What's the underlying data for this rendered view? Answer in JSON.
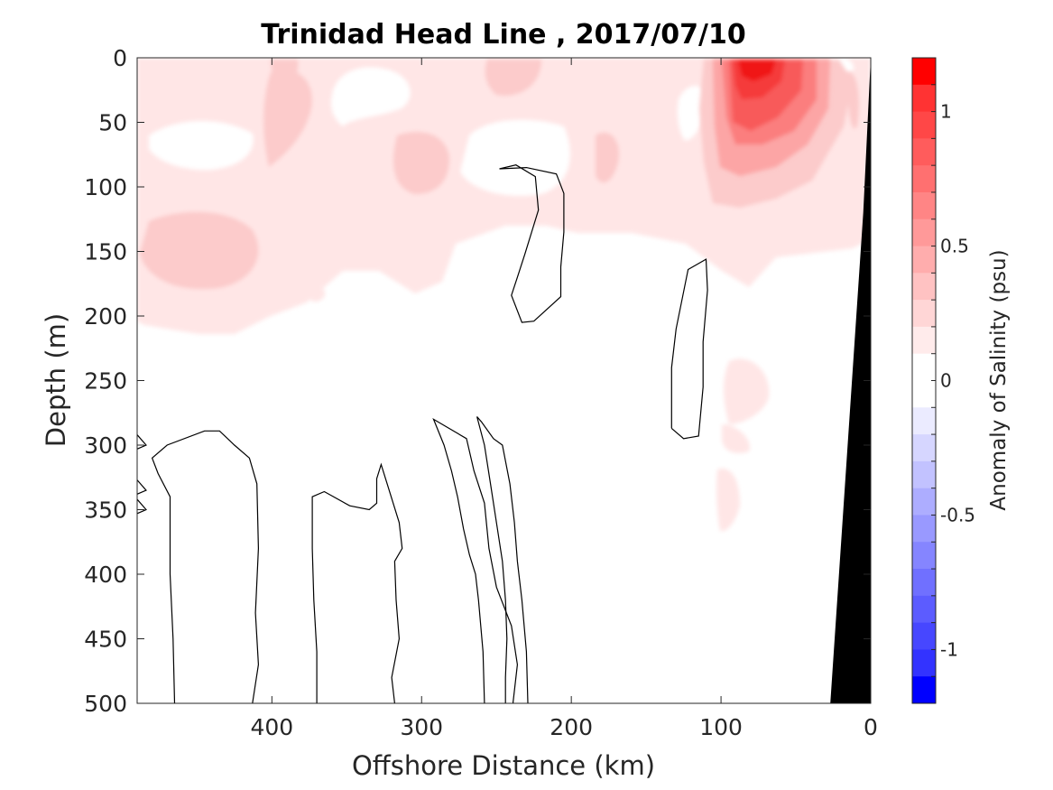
{
  "chart_data": {
    "type": "heatmap",
    "title": "Trinidad Head Line , 2017/07/10",
    "xlabel": "Offshore Distance (km)",
    "ylabel": "Depth (m)",
    "xlim": [
      490,
      0
    ],
    "ylim": [
      0,
      500
    ],
    "x_reversed": true,
    "y_reversed": true,
    "xticks": [
      400,
      300,
      200,
      100,
      0
    ],
    "yticks": [
      0,
      50,
      100,
      150,
      200,
      250,
      300,
      350,
      400,
      450,
      500
    ],
    "colorbar": {
      "label": "Anomaly of Salinity (psu)",
      "range": [
        -1.2,
        1.2
      ],
      "step": 0.1,
      "ticks": [
        1,
        0.5,
        0,
        -0.5,
        -1
      ],
      "tick_labels": [
        "1",
        "0.5",
        "0",
        "-0.5",
        "-1"
      ]
    },
    "zero_contours_km_m": [
      [
        [
          248,
          86
        ],
        [
          237,
          83
        ],
        [
          224,
          92
        ],
        [
          222,
          118
        ],
        [
          231,
          152
        ],
        [
          236,
          170
        ],
        [
          240,
          184
        ],
        [
          233,
          205
        ],
        [
          225,
          204
        ],
        [
          207,
          185
        ],
        [
          207,
          162
        ],
        [
          205,
          135
        ],
        [
          205,
          105
        ],
        [
          210,
          90
        ],
        [
          230,
          85
        ],
        [
          248,
          86
        ]
      ],
      [
        [
          133,
          287
        ],
        [
          133,
          240
        ],
        [
          130,
          210
        ],
        [
          122,
          164
        ],
        [
          110,
          156
        ],
        [
          109,
          180
        ],
        [
          112,
          220
        ],
        [
          112,
          255
        ],
        [
          115,
          293
        ],
        [
          125,
          295
        ],
        [
          133,
          287
        ]
      ],
      [
        [
          465,
          500
        ],
        [
          466,
          450
        ],
        [
          468,
          400
        ],
        [
          468,
          340
        ],
        [
          476,
          322
        ],
        [
          480,
          310
        ],
        [
          470,
          300
        ],
        [
          445,
          289
        ],
        [
          435,
          289
        ],
        [
          425,
          300
        ],
        [
          415,
          310
        ],
        [
          410,
          330
        ],
        [
          409,
          380
        ],
        [
          411,
          430
        ],
        [
          409,
          470
        ],
        [
          413,
          500
        ]
      ],
      [
        [
          370,
          500
        ],
        [
          370,
          460
        ],
        [
          372,
          420
        ],
        [
          373,
          380
        ],
        [
          373,
          340
        ],
        [
          365,
          336
        ],
        [
          348,
          347
        ],
        [
          335,
          350
        ],
        [
          330,
          345
        ],
        [
          330,
          326
        ],
        [
          327,
          315
        ],
        [
          323,
          330
        ],
        [
          315,
          360
        ],
        [
          313,
          380
        ],
        [
          318,
          390
        ],
        [
          317,
          420
        ],
        [
          315,
          450
        ],
        [
          320,
          480
        ],
        [
          318,
          500
        ]
      ],
      [
        [
          258,
          500
        ],
        [
          259,
          460
        ],
        [
          262,
          420
        ],
        [
          264,
          400
        ],
        [
          268,
          385
        ],
        [
          272,
          365
        ],
        [
          276,
          340
        ],
        [
          280,
          320
        ],
        [
          285,
          300
        ],
        [
          292,
          280
        ],
        [
          270,
          295
        ],
        [
          265,
          320
        ],
        [
          258,
          345
        ],
        [
          255,
          380
        ],
        [
          250,
          410
        ],
        [
          240,
          440
        ],
        [
          236,
          470
        ],
        [
          239,
          500
        ]
      ],
      [
        [
          229,
          500
        ],
        [
          230,
          460
        ],
        [
          233,
          420
        ],
        [
          236,
          390
        ],
        [
          238,
          360
        ],
        [
          241,
          330
        ],
        [
          246,
          300
        ],
        [
          252,
          295
        ],
        [
          260,
          282
        ],
        [
          263,
          278
        ],
        [
          258,
          300
        ],
        [
          254,
          330
        ],
        [
          250,
          360
        ],
        [
          246,
          390
        ],
        [
          244,
          420
        ],
        [
          243,
          450
        ],
        [
          244,
          480
        ],
        [
          244,
          500
        ]
      ]
    ],
    "anomalies": [
      {
        "x_km": 75,
        "depth_m": 5,
        "value": 1.2
      },
      {
        "x_km": 80,
        "depth_m": 55,
        "value": 0.8
      },
      {
        "x_km": 95,
        "depth_m": 100,
        "value": 0.4
      },
      {
        "x_km": 30,
        "depth_m": 60,
        "value": 0.3
      },
      {
        "x_km": 160,
        "depth_m": 120,
        "value": 0.25
      },
      {
        "x_km": 290,
        "depth_m": 80,
        "value": 0.2
      },
      {
        "x_km": 440,
        "depth_m": 150,
        "value": 0.2
      },
      {
        "x_km": 380,
        "depth_m": 40,
        "value": 0.2
      },
      {
        "x_km": 240,
        "depth_m": 30,
        "value": 0.15
      },
      {
        "x_km": 100,
        "depth_m": 290,
        "value": 0.1
      },
      {
        "x_km": 100,
        "depth_m": 350,
        "value": 0.1
      }
    ],
    "bathymetry_color": "#000000",
    "contour_color": "#000000"
  }
}
